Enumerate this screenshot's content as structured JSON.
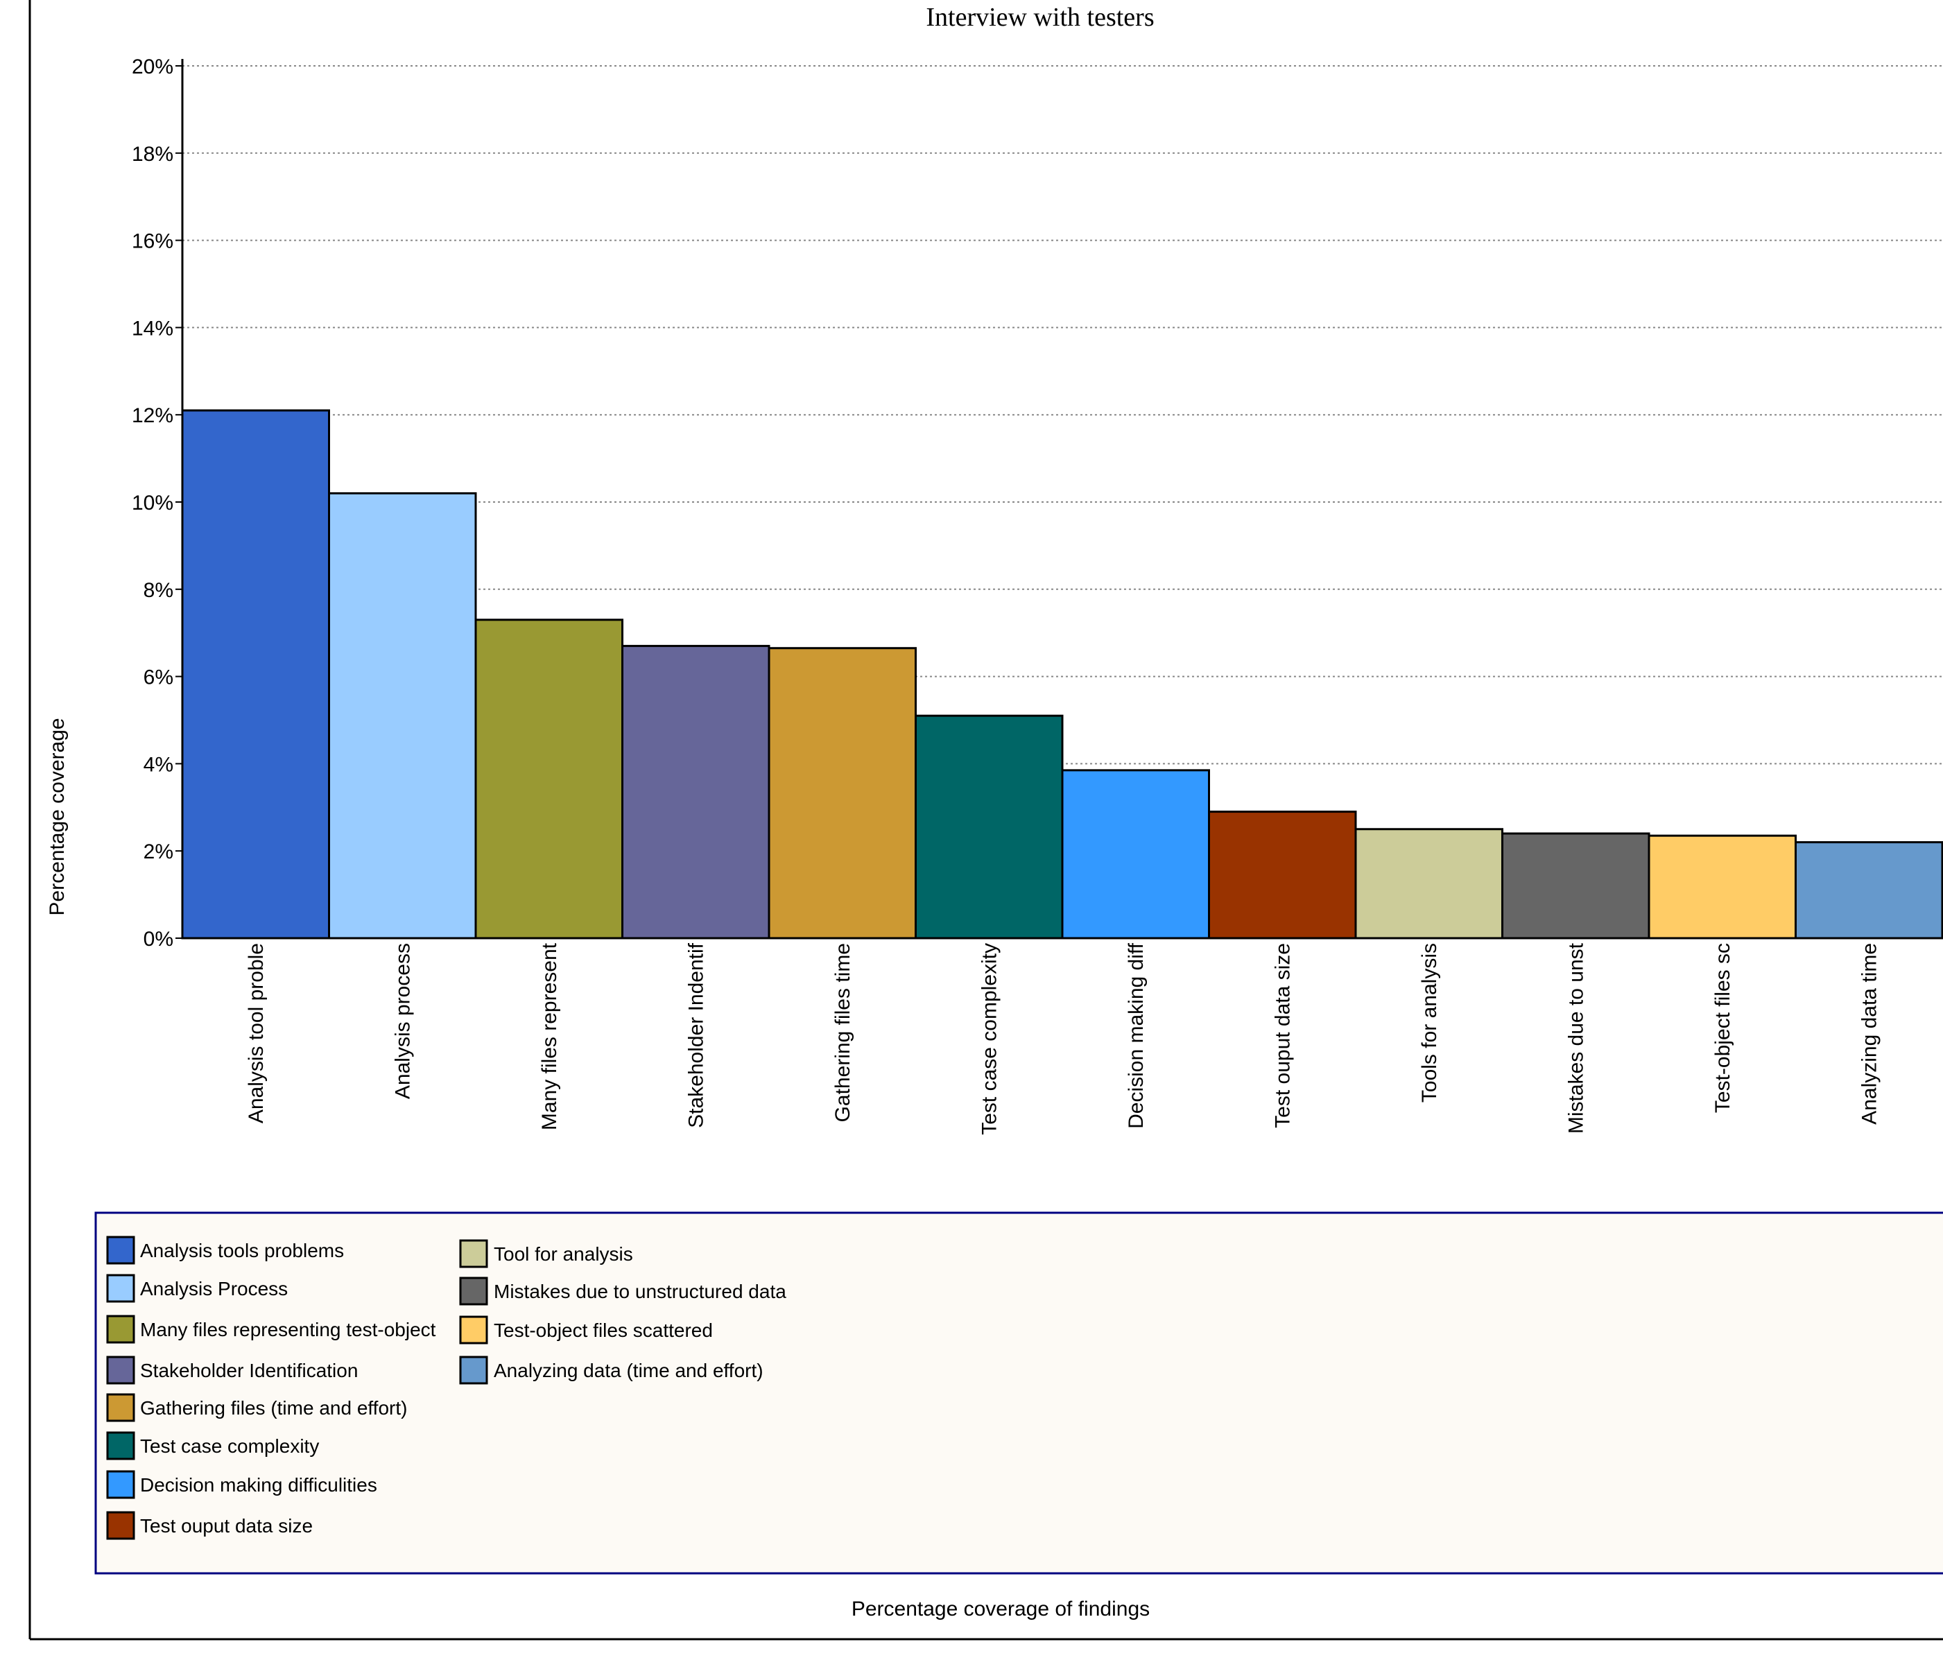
{
  "chart_data": {
    "type": "bar",
    "title": "Interview with testers",
    "xlabel": "Percentage coverage of findings",
    "ylabel": "Percentage coverage",
    "ylim": [
      0,
      20
    ],
    "yticks": [
      "0%",
      "2%",
      "4%",
      "6%",
      "8%",
      "10%",
      "12%",
      "14%",
      "16%",
      "18%",
      "20%"
    ],
    "grid": true,
    "categories": [
      "Analysis tool proble",
      "Analysis process",
      "Many files represent",
      "Stakeholder Indentif",
      "Gathering files time",
      "Test case complexity",
      "Decision making diff",
      "Test ouput data size",
      "Tools for analysis",
      "Mistakes due to unst",
      "Test-object files sc",
      "Analyzing data time"
    ],
    "values": [
      12.1,
      10.2,
      7.3,
      6.7,
      6.65,
      5.1,
      3.85,
      2.9,
      2.5,
      2.4,
      2.35,
      2.2
    ],
    "colors": [
      "#3366cc",
      "#99ccff",
      "#999933",
      "#666699",
      "#cc9933",
      "#006666",
      "#3399ff",
      "#993300",
      "#cccc99",
      "#666666",
      "#ffcc66",
      "#6699cc"
    ],
    "legend": {
      "placement": "bottom",
      "column1": [
        "Analysis tools problems",
        "Analysis Process",
        "Many files representing test-object",
        "Stakeholder Identification",
        "Gathering files (time and effort)",
        "Test case complexity",
        "Decision making difficulities",
        "Test ouput data size"
      ],
      "column2": [
        "Tool for analysis",
        "Mistakes due to unstructured data",
        "Test-object files scattered",
        "Analyzing data (time and effort)"
      ]
    }
  }
}
